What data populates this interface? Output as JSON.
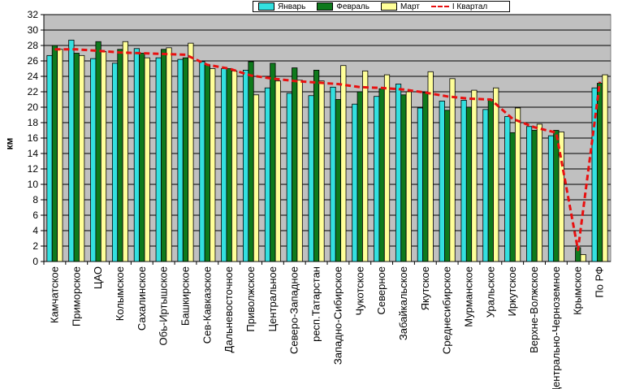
{
  "chart_data": {
    "type": "bar",
    "ylabel": "км",
    "ylim": [
      0,
      32
    ],
    "yticks": [
      0,
      2,
      4,
      6,
      8,
      10,
      12,
      14,
      16,
      18,
      20,
      22,
      24,
      26,
      28,
      30,
      32
    ],
    "grid": true,
    "legend_position": "top",
    "categories": [
      "Камчатское",
      "Приморское",
      "ЦАО",
      "Колымское",
      "Сахалинское",
      "Обь-Иртышское",
      "Башкирское",
      "Сев-Кавказское",
      "Дальневосточное",
      "Приволжское",
      "Центральное",
      "Северо-Западное",
      "респ.Татарстан",
      "Западно-Сибирское",
      "Чукотское",
      "Северное",
      "Забайкальское",
      "Якутское",
      "Среднесибирское",
      "Мурманское",
      "Уральское",
      "Иркутское",
      "Верхне-Волжское",
      "Центрально-Черноземное",
      "Крымское",
      "По РФ"
    ],
    "series": [
      {
        "name": "Январь",
        "type": "bar",
        "color": "#33e0e0",
        "values": [
          26.7,
          28.7,
          26.3,
          25.7,
          27.6,
          26.4,
          26.2,
          25.9,
          25.0,
          24.8,
          22.5,
          21.8,
          21.5,
          22.6,
          20.4,
          21.4,
          23.0,
          19.9,
          20.8,
          20.9,
          19.7,
          18.8,
          17.5,
          16.3,
          null,
          22.5
        ]
      },
      {
        "name": "Февраль",
        "type": "bar",
        "color": "#0e7a1c",
        "values": [
          28.0,
          27.0,
          28.5,
          27.5,
          27.0,
          27.5,
          26.4,
          25.5,
          25.0,
          25.9,
          25.7,
          25.1,
          24.8,
          21.0,
          22.0,
          22.4,
          21.6,
          21.9,
          19.6,
          20.0,
          21.0,
          16.7,
          17.0,
          17.0,
          1.8,
          23.1
        ]
      },
      {
        "name": "Март",
        "type": "bar",
        "color": "#ffff99",
        "values": [
          27.5,
          26.7,
          27.2,
          28.5,
          26.4,
          27.7,
          28.3,
          25.0,
          24.7,
          21.6,
          23.4,
          23.5,
          23.4,
          25.4,
          24.7,
          24.2,
          22.0,
          24.6,
          23.7,
          22.2,
          22.5,
          19.9,
          17.8,
          16.8,
          0.9,
          24.2
        ]
      },
      {
        "name": "I Квартал",
        "type": "line",
        "color": "#e81010",
        "values": [
          27.5,
          27.5,
          27.3,
          27.1,
          27.0,
          26.9,
          26.8,
          25.5,
          25.0,
          24.1,
          23.7,
          23.4,
          23.2,
          23.0,
          22.6,
          22.5,
          22.3,
          21.9,
          21.4,
          21.1,
          21.0,
          18.5,
          17.4,
          16.7,
          1.5,
          23.3
        ]
      }
    ]
  }
}
